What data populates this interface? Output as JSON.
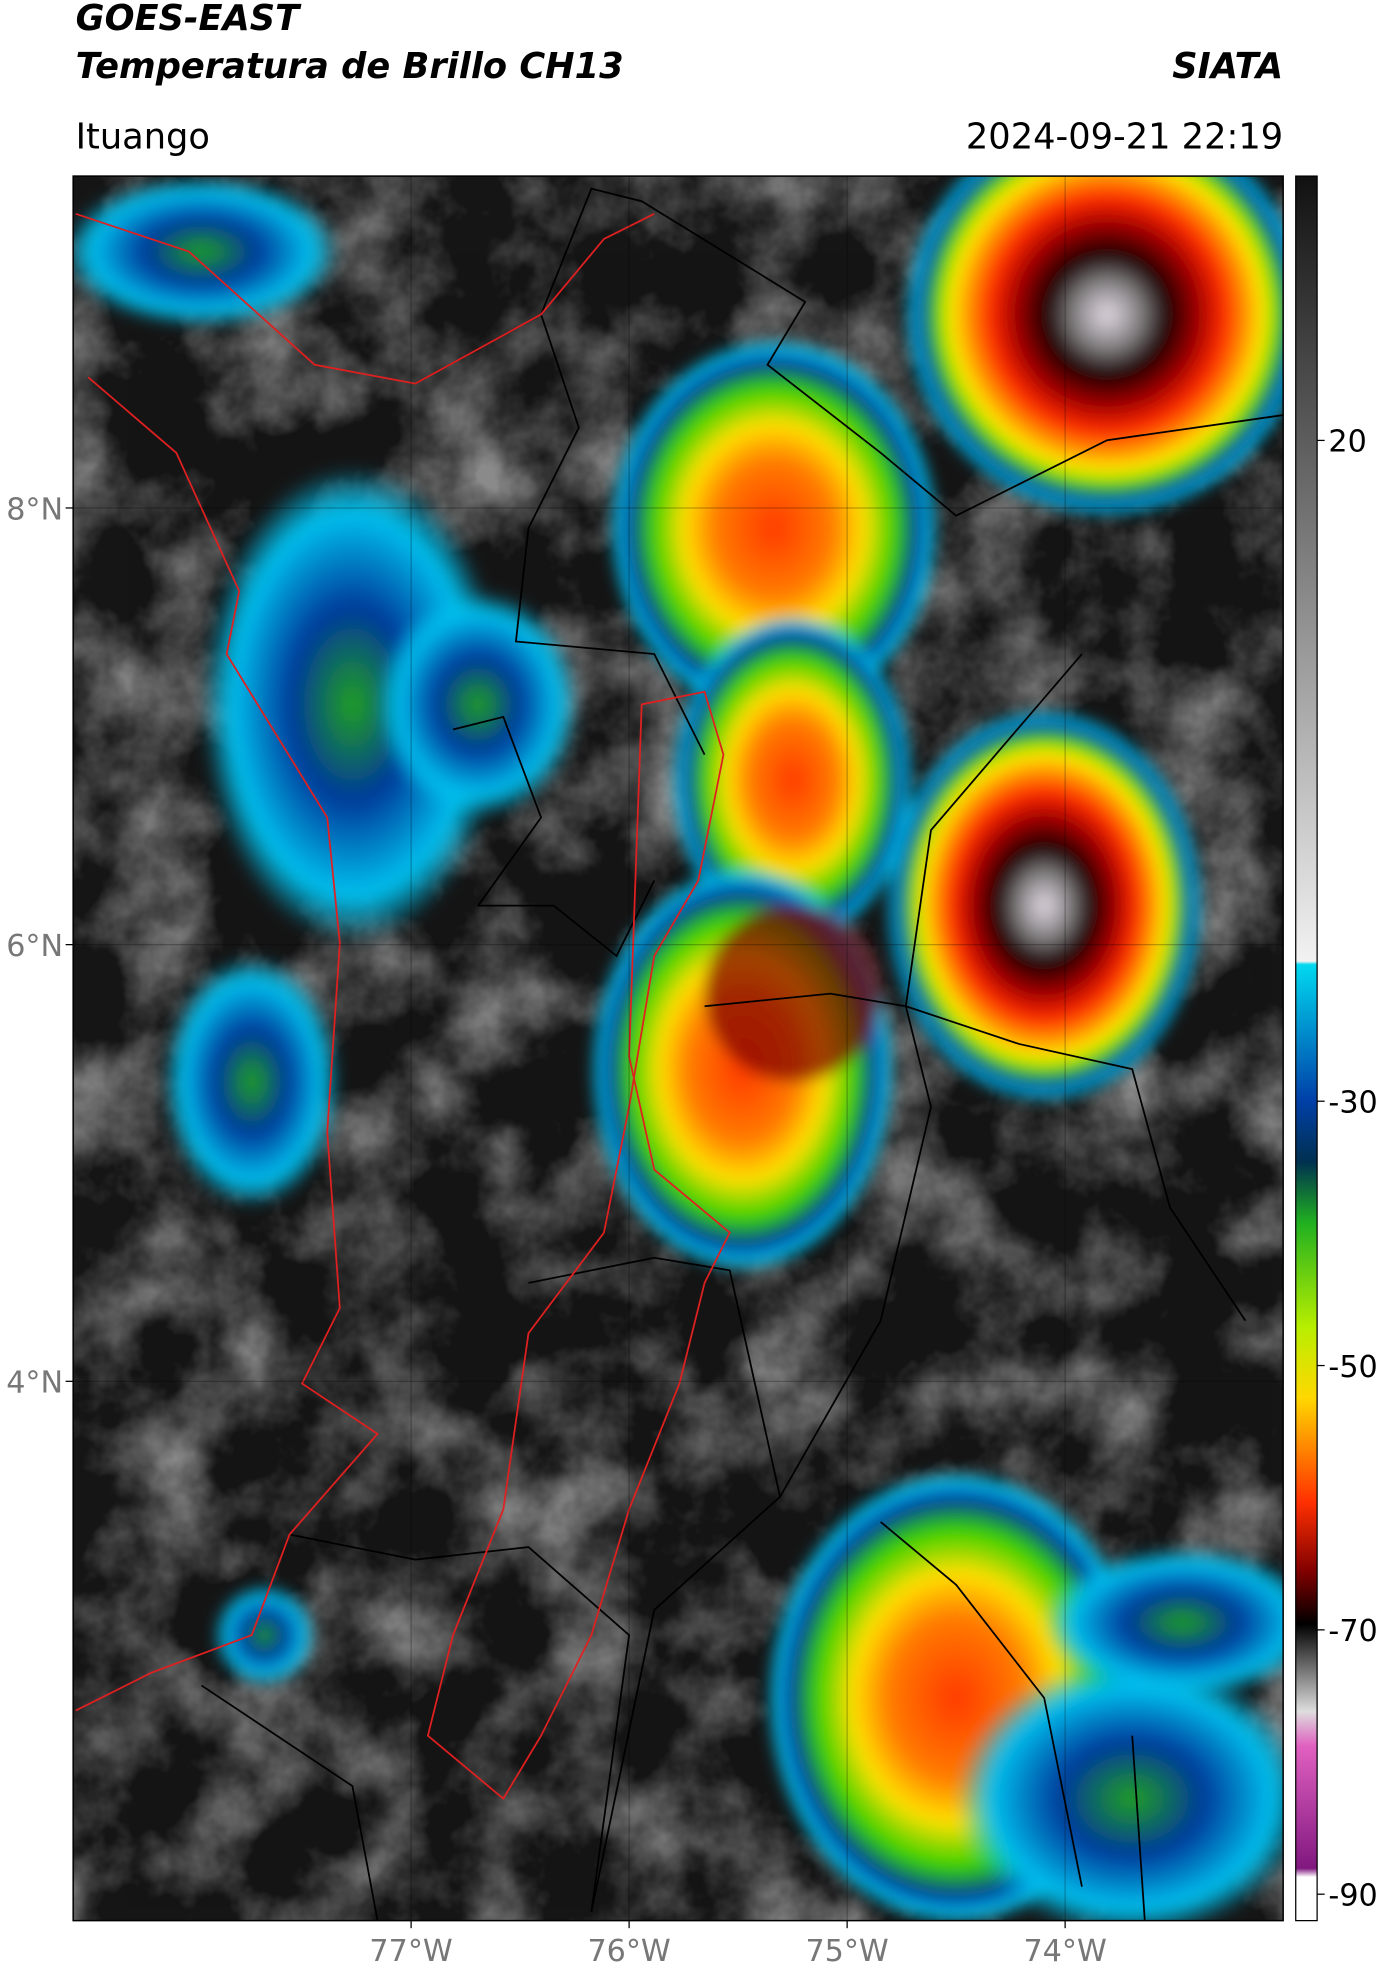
{
  "header": {
    "title": "GOES-EAST",
    "subtitle": "Temperatura de Brillo CH13",
    "source": "SIATA",
    "location": "Ituango",
    "datetime": "2024-09-21 22:19"
  },
  "map": {
    "lon_range": [
      -78.55,
      -73.0
    ],
    "lat_range": [
      1.53,
      9.52
    ],
    "lon_ticks": [
      {
        "value": -77,
        "label": "77°W"
      },
      {
        "value": -76,
        "label": "76°W"
      },
      {
        "value": -75,
        "label": "75°W"
      },
      {
        "value": -74,
        "label": "74°W"
      }
    ],
    "lat_ticks": [
      {
        "value": 8,
        "label": "8°N"
      },
      {
        "value": 6,
        "label": "6°N"
      },
      {
        "value": 4,
        "label": "4°N"
      }
    ]
  },
  "colorbar": {
    "range": [
      -92,
      40
    ],
    "ticks": [
      20,
      -30,
      -50,
      -70,
      -90
    ]
  }
}
